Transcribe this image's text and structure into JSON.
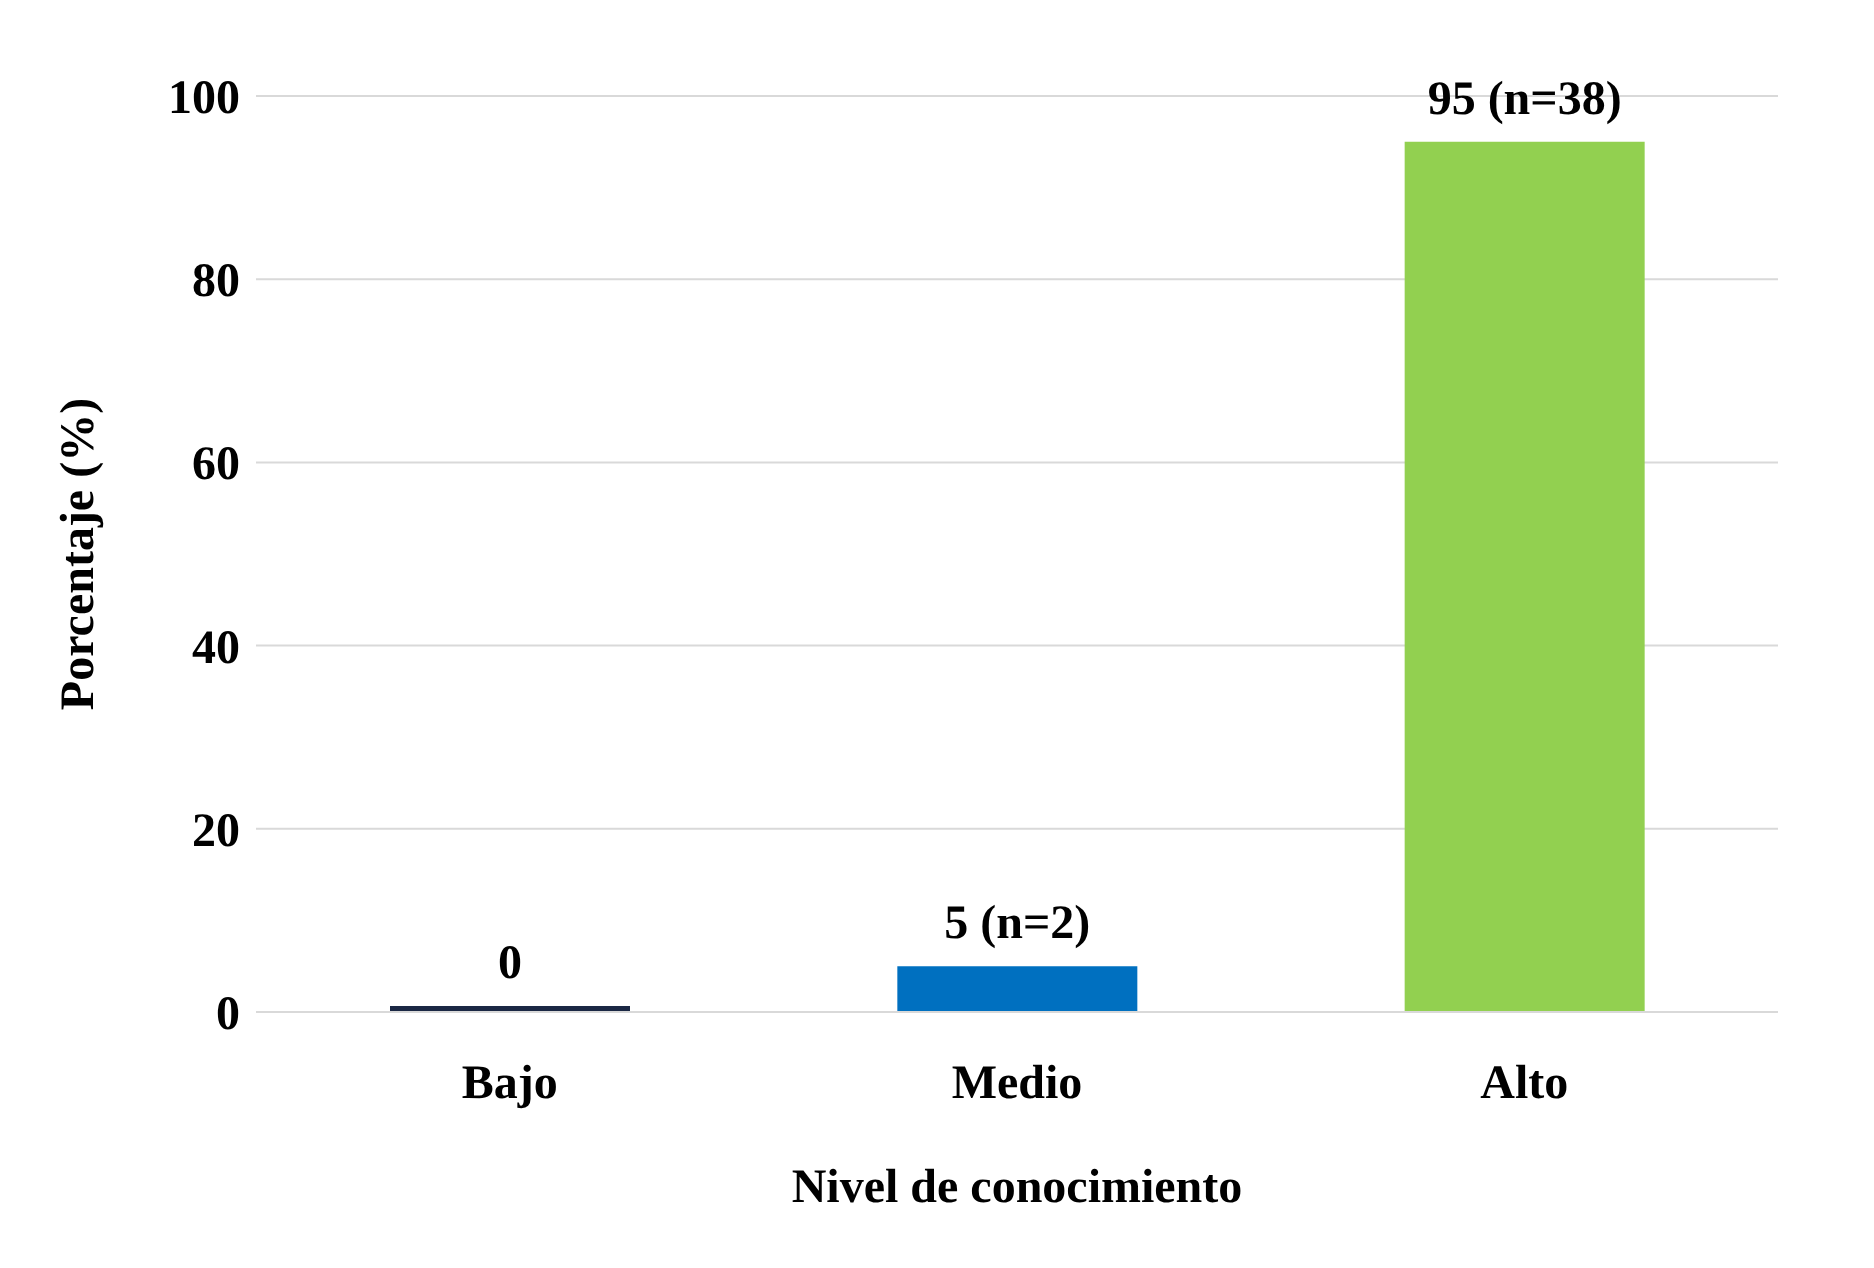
{
  "chart_data": {
    "type": "bar",
    "xlabel": "Nivel de conocimiento",
    "ylabel": "Porcentaje (%)",
    "categories": [
      "Bajo",
      "Medio",
      "Alto"
    ],
    "values": [
      0,
      5,
      95
    ],
    "colors": [
      "#1a2744",
      "#0070c0",
      "#92d050"
    ],
    "value_labels": [
      "0",
      "5 (n=2)",
      "95 (n=38)"
    ],
    "ylim": [
      0,
      100
    ],
    "yticks": [
      0,
      20,
      40,
      60,
      80,
      100
    ],
    "grid": "y"
  }
}
